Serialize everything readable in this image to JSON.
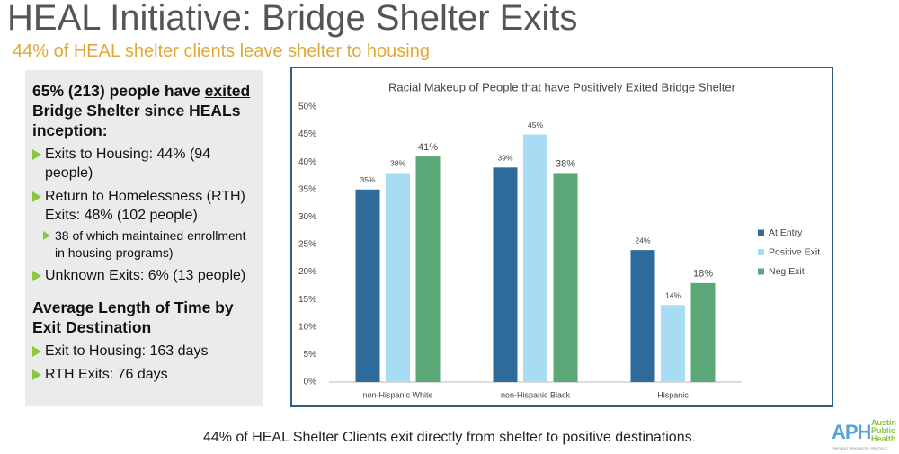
{
  "slide": {
    "title": "HEAL Initiative: Bridge Shelter Exits",
    "subtitle": "44% of HEAL shelter clients leave shelter to housing",
    "footer": "44% of HEAL Shelter Clients exit directly from shelter to positive destinations",
    "footer_end": ".",
    "logo": {
      "mark": "APH",
      "name": [
        "Austin",
        "Public",
        "Health"
      ],
      "tagline": "PREVENT. PROMOTE. PROTECT."
    }
  },
  "left_panel": {
    "heading_parts": [
      "65% (213) people have ",
      "exited ",
      "Bridge Shelter since HEALs inception:"
    ],
    "items": [
      {
        "text": "Exits to Housing: 44% (94 people)"
      },
      {
        "text": "Return to Homelessness (RTH) Exits: 48% (102 people)",
        "sub": [
          "38 of which maintained enrollment in housing programs)"
        ]
      },
      {
        "text": "Unknown Exits:  6% (13 people)"
      }
    ],
    "heading2": "Average Length of Time by Exit Destination",
    "items2": [
      {
        "text": "Exit to Housing: 163 days"
      },
      {
        "text": "RTH Exits: 76 days"
      }
    ]
  },
  "chart_data": {
    "type": "bar",
    "title": "Racial Makeup of People that have Positively Exited Bridge Shelter",
    "categories": [
      "non-Hispanic White",
      "non-Hispanic Black",
      "Hispanic"
    ],
    "series": [
      {
        "name": "At Entry",
        "color": "#2e6a9a",
        "values": [
          35,
          39,
          24
        ],
        "value_labels": [
          "35%",
          "39%",
          "24%"
        ]
      },
      {
        "name": "Positive Exit",
        "color": "#a8dcf5",
        "values": [
          38,
          45,
          14
        ],
        "value_labels": [
          "38%",
          "45%",
          "14%"
        ]
      },
      {
        "name": "Neg Exit",
        "color": "#5ba777",
        "values": [
          41,
          38,
          18
        ],
        "value_labels": [
          "41%",
          "38%",
          "18%"
        ]
      }
    ],
    "ylim": [
      0,
      50
    ],
    "yticks": [
      {
        "value": 0,
        "label": "0%"
      },
      {
        "value": 5,
        "label": "5%"
      },
      {
        "value": 10,
        "label": "10%"
      },
      {
        "value": 15,
        "label": "15%"
      },
      {
        "value": 20,
        "label": "20%"
      },
      {
        "value": 25,
        "label": "25%"
      },
      {
        "value": 30,
        "label": "30%"
      },
      {
        "value": 35,
        "label": "35%"
      },
      {
        "value": 40,
        "label": "40%"
      },
      {
        "value": 45,
        "label": "45%"
      },
      {
        "value": 50,
        "label": "50%"
      }
    ],
    "grid": false,
    "legend": "right"
  }
}
